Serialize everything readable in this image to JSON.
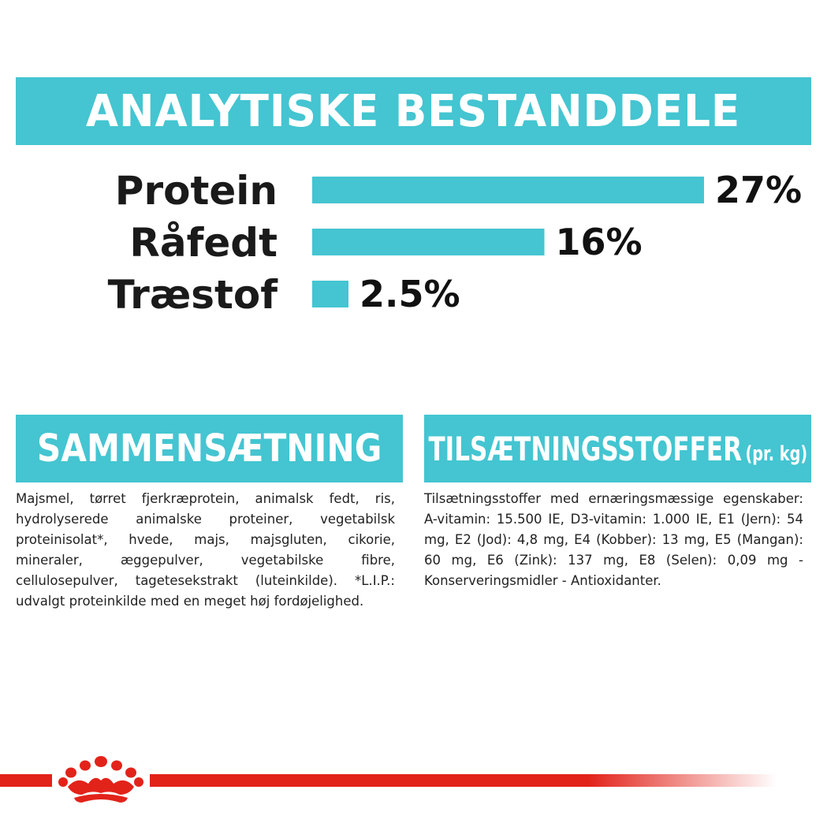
{
  "header": {
    "title": "ANALYTISKE BESTANDDELE"
  },
  "chart_data": {
    "type": "bar",
    "orientation": "horizontal",
    "categories": [
      "Protein",
      "Råfedt",
      "Træstof"
    ],
    "values": [
      27,
      16,
      2.5
    ],
    "value_labels": [
      "27%",
      "16%",
      "2.5%"
    ],
    "unit": "%",
    "xlim": [
      0,
      27
    ],
    "grid": false,
    "bar_color": "#44c5d1"
  },
  "composition": {
    "title": "SAMMENSÆTNING",
    "text": "Majsmel, tørret fjerkræprotein, animalsk fedt, ris, hydrolyserede animalske proteiner, vegetabilsk proteinisolat*, hvede, majs, majsgluten, cikorie, mineraler, æggepulver, vegetabilske fibre, cellulosepulver, tagetesekstrakt (luteinkilde). *L.I.P.: udvalgt proteinkilde med en meget høj fordøjelighed."
  },
  "additives": {
    "title": "TILSÆTNINGSSTOFFER",
    "unit": "(pr. kg)",
    "text": "Tilsætningsstoffer med ernæringsmæssige egenskaber: A-vitamin: 15.500 IE, D3-vitamin: 1.000 IE, E1 (Jern): 54 mg, E2 (Jod): 4,8 mg, E4 (Kobber): 13 mg, E5 (Mangan): 60 mg, E6 (Zink): 137 mg, E8 (Selen): 0,09 mg - Konserveringsmidler - Antioxidanter."
  },
  "colors": {
    "accent": "#44c5d1",
    "brand_red": "#e2231a"
  },
  "footer": {
    "logo_icon": "crown-icon"
  }
}
